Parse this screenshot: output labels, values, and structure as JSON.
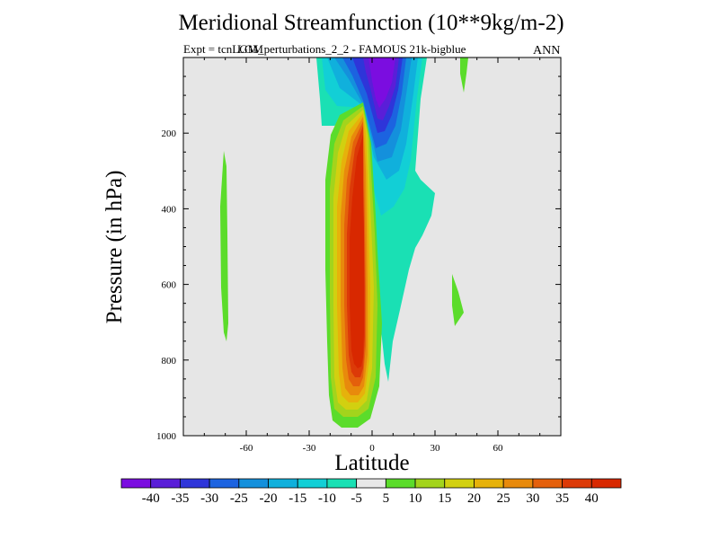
{
  "chart_data": {
    "type": "heatmap",
    "title": "Meridional Streamfunction (10**9kg/m-2)",
    "subtitle": "Expt = tcnLGM_perturbations_2_2 - FAMOUS 21k-bigblue",
    "overlay_text": "LGM",
    "season": "ANN",
    "xlabel": "Latitude",
    "ylabel": "Pressure (in hPa)",
    "xlim": [
      -90,
      90
    ],
    "ylim": [
      1000,
      0
    ],
    "x_ticks": [
      -60,
      -30,
      0,
      30,
      60
    ],
    "y_ticks": [
      200,
      400,
      600,
      800,
      1000
    ],
    "colorbar": {
      "levels": [
        -40,
        -35,
        -30,
        -25,
        -20,
        -15,
        -10,
        -5,
        5,
        10,
        15,
        20,
        25,
        30,
        35,
        40
      ],
      "colors": [
        "#7b0de0",
        "#5a1ed8",
        "#2e35d9",
        "#1c63e0",
        "#1490dc",
        "#10b0dc",
        "#12cfd6",
        "#1ae0b4",
        "#e8e8e8",
        "#5bdc2b",
        "#a3d41c",
        "#d2d010",
        "#e6b20b",
        "#e88a0c",
        "#e4600c",
        "#dc3a08",
        "#d82800"
      ]
    },
    "features": [
      {
        "name": "southern Hadley cell",
        "sign": "positive",
        "center_lat": -5,
        "center_pressure": 550,
        "max_value": 40
      },
      {
        "name": "northern Hadley cell",
        "sign": "negative",
        "center_lat": 5,
        "center_pressure": 150,
        "min_value": -40
      },
      {
        "name": "southern Ferrel cell",
        "sign": "positive",
        "center_lat": -68,
        "center_pressure": 550,
        "max_value": 5
      },
      {
        "name": "northern Ferrel cell",
        "sign": "positive",
        "center_lat": 40,
        "center_pressure": 650,
        "max_value": 5
      }
    ]
  }
}
